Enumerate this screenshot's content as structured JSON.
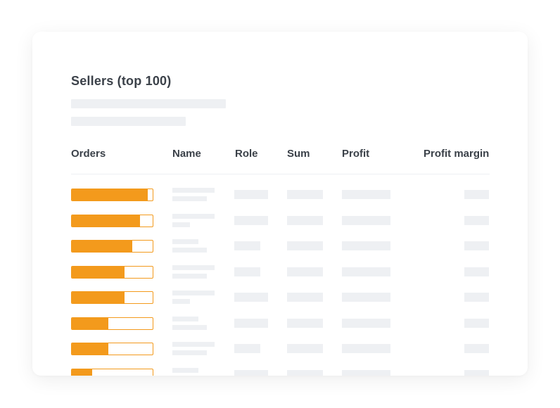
{
  "card": {
    "title": "Sellers (top 100)"
  },
  "table": {
    "columns": [
      "Orders",
      "Name",
      "Role",
      "Sum",
      "Profit",
      "Profit margin"
    ],
    "rows": [
      {
        "orders_fill": 0.94
      },
      {
        "orders_fill": 0.84
      },
      {
        "orders_fill": 0.75
      },
      {
        "orders_fill": 0.65
      },
      {
        "orders_fill": 0.65
      },
      {
        "orders_fill": 0.45
      },
      {
        "orders_fill": 0.45
      },
      {
        "orders_fill": 0.25
      }
    ]
  },
  "colors": {
    "accent": "#f39a1c",
    "placeholder": "#eef0f3",
    "text": "#3b4149"
  }
}
